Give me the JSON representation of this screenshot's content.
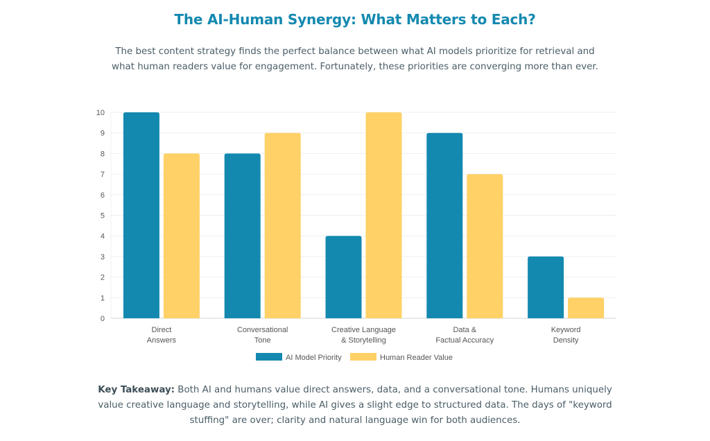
{
  "header": {
    "title": "The AI-Human Synergy: What Matters to Each?",
    "subtitle": "The best content strategy finds the perfect balance between what AI models prioritize for retrieval and what human readers value for engagement. Fortunately, these priorities are converging more than ever."
  },
  "chart_data": {
    "type": "bar",
    "title": "",
    "xlabel": "",
    "ylabel": "",
    "ylim": [
      0,
      10
    ],
    "yticks": [
      "0",
      "1",
      "2",
      "3",
      "4",
      "5",
      "6",
      "7",
      "8",
      "9",
      "10"
    ],
    "grid": true,
    "legend_position": "bottom",
    "categories": [
      [
        "Direct",
        "Answers"
      ],
      [
        "Conversational",
        "Tone"
      ],
      [
        "Creative Language",
        "& Storytelling"
      ],
      [
        "Data &",
        "Factual Accuracy"
      ],
      [
        "Keyword",
        "Density"
      ]
    ],
    "series": [
      {
        "name": "AI Model Priority",
        "color": "#1489b0",
        "values": [
          10,
          8,
          4,
          9,
          3
        ]
      },
      {
        "name": "Human Reader Value",
        "color": "#ffd166",
        "values": [
          8,
          9,
          10,
          7,
          1
        ]
      }
    ]
  },
  "footer": {
    "label": "Key Takeaway:",
    "text": " Both AI and humans value direct answers, data, and a conversational tone. Humans uniquely value creative language and storytelling, while AI gives a slight edge to structured data. The days of \"keyword stuffing\" are over; clarity and natural language win for both audiences."
  }
}
